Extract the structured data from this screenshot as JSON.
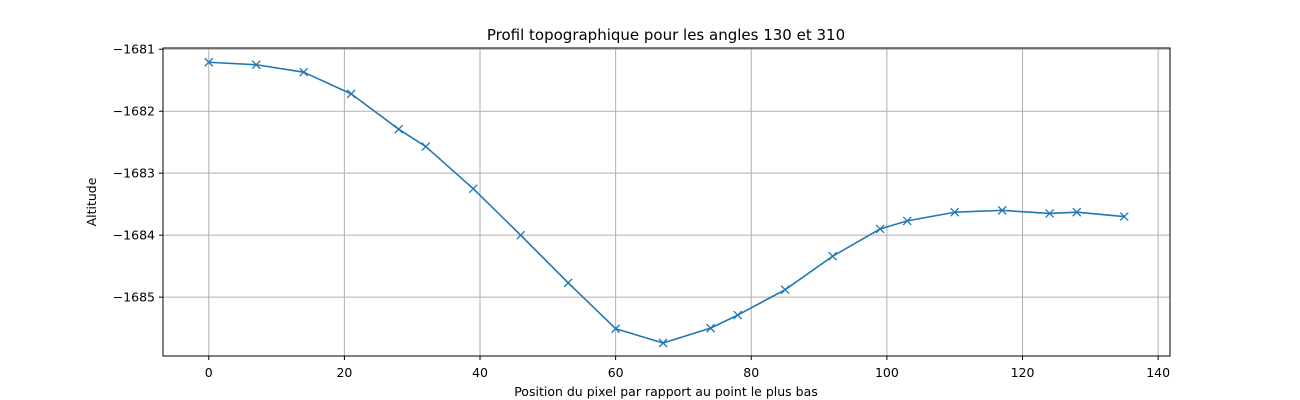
{
  "chart_data": {
    "type": "line",
    "title": "Profil topographique pour les angles 130 et 310",
    "xlabel": "Position du pixel par rapport au point le plus bas",
    "ylabel": "Altitude",
    "xlim": [
      -6.75,
      141.75
    ],
    "ylim": [
      -1685.95,
      -1680.98
    ],
    "x_ticks": [
      0,
      20,
      40,
      60,
      80,
      100,
      120,
      140
    ],
    "y_ticks": [
      -1681,
      -1682,
      -1683,
      -1684,
      -1685
    ],
    "x_tick_labels": [
      "0",
      "20",
      "40",
      "60",
      "80",
      "100",
      "120",
      "140"
    ],
    "y_tick_labels": [
      "−1681",
      "−1682",
      "−1683",
      "−1684",
      "−1685"
    ],
    "grid": true,
    "marker": "x",
    "colors": {
      "line": "#1f77b4"
    },
    "series": [
      {
        "x": [
          0,
          7,
          14,
          21,
          28,
          32,
          39,
          46,
          53,
          60,
          67,
          74,
          78,
          85,
          92,
          99,
          103,
          110,
          117,
          124,
          128,
          135
        ],
        "y": [
          -1681.21,
          -1681.25,
          -1681.37,
          -1681.72,
          -1682.29,
          -1682.57,
          -1683.25,
          -1684.0,
          -1684.77,
          -1685.51,
          -1685.74,
          -1685.5,
          -1685.29,
          -1684.88,
          -1684.34,
          -1683.9,
          -1683.77,
          -1683.63,
          -1683.6,
          -1683.65,
          -1683.63,
          -1683.7
        ]
      }
    ]
  }
}
